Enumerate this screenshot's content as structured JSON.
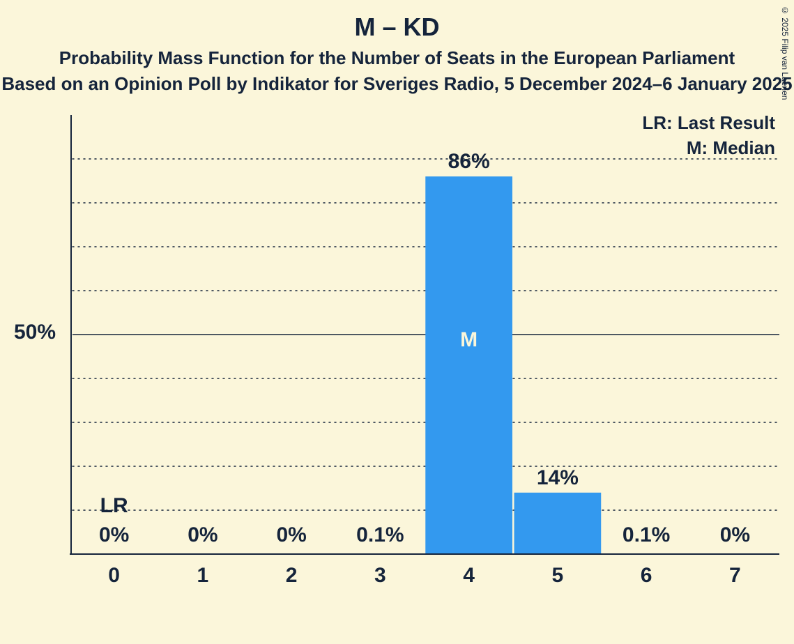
{
  "title": "M – KD",
  "subtitle": "Probability Mass Function for the Number of Seats in the European Parliament",
  "subtitle2": "Based on an Opinion Poll by Indikator for Sveriges Radio, 5 December 2024–6 January 2025",
  "copyright": "© 2025 Filip van Laenen",
  "legend": {
    "lr": "LR: Last Result",
    "m": "M: Median"
  },
  "yaxis": {
    "label_value": "50%",
    "ymax_value": 100,
    "major_tick": 50,
    "minor_step": 10
  },
  "chart": {
    "type": "bar",
    "background_color": "#fbf6da",
    "bar_color": "#3399ef",
    "text_color": "#15243b",
    "median_text_color": "#fbf6da",
    "grid_color": "#15243b",
    "categories": [
      "0",
      "1",
      "2",
      "3",
      "4",
      "5",
      "6",
      "7"
    ],
    "values": [
      0,
      0,
      0,
      0.1,
      86,
      14,
      0.1,
      0
    ],
    "display_values": [
      "0%",
      "0%",
      "0%",
      "0.1%",
      "86%",
      "14%",
      "0.1%",
      "0%"
    ],
    "lr_index": 0,
    "lr_label": "LR",
    "median_index": 4,
    "median_label": "M",
    "bar_width_ratio": 0.98,
    "value_fontsize": 30,
    "tick_fontsize": 30
  }
}
